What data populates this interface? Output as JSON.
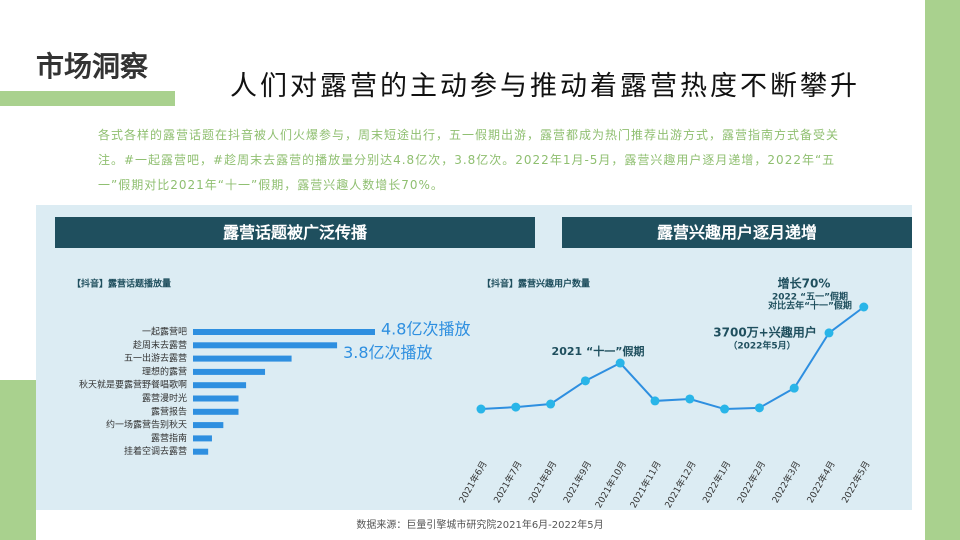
{
  "header": {
    "section": "市场洞察",
    "title": "人们对露营的主动参与推动着露营热度不断攀升",
    "paragraph": "各式各样的露营话题在抖音被人们火爆参与，周末短途出行，五一假期出游，露营都成为热门推荐出游方式，露营指南方式备受关注。#一起露营吧，#趁周末去露营的播放量分别达4.8亿次，3.8亿次。2022年1月-5月，露营兴趣用户逐月递增，2022年“五一”假期对比2021年“十一”假期，露营兴趣人数增长70%。"
  },
  "panels": [
    "露营话题被广泛传播",
    "露营兴趣用户逐月递增"
  ],
  "source": "数据来源：巨量引擎城市研究院2021年6月-2022年5月",
  "chart_data": [
    {
      "type": "hbar",
      "title": "【抖音】露营话题播放量",
      "color": "#2e8fe0",
      "categories": [
        "一起露营吧",
        "趁周末去露营",
        "五一出游去露营",
        "理想的露营",
        "秋天就是要露营野餐唱歌啊",
        "露营漫时光",
        "露营报告",
        "约一场露营告别秋天",
        "露营指南",
        "挂着空调去露营"
      ],
      "values": [
        4.8,
        3.8,
        2.6,
        1.9,
        1.4,
        1.2,
        1.2,
        0.8,
        0.5,
        0.4
      ],
      "value_labels": [
        "4.8亿次播放",
        "3.8亿次播放",
        null,
        null,
        null,
        null,
        null,
        null,
        null,
        null
      ]
    },
    {
      "type": "line",
      "title": "【抖音】露营兴趣用户数量",
      "color": "#2e8fe0",
      "marker_color": "#29b5e8",
      "categories": [
        "2021年6月",
        "2021年7月",
        "2021年8月",
        "2021年9月",
        "2021年10月",
        "2021年11月",
        "2021年12月",
        "2022年1月",
        "2022年2月",
        "2022年3月",
        "2022年4月",
        "2022年5月"
      ],
      "values": [
        1060,
        1110,
        1190,
        1790,
        2250,
        1270,
        1320,
        1060,
        1090,
        1600,
        3030,
        3700
      ],
      "annotations": [
        "2021 “十一”假期",
        "增长70%",
        "2022 “五一”假期",
        "对比去年“十一”假期",
        "3700万+兴趣用户",
        "（2022年5月）"
      ]
    }
  ]
}
